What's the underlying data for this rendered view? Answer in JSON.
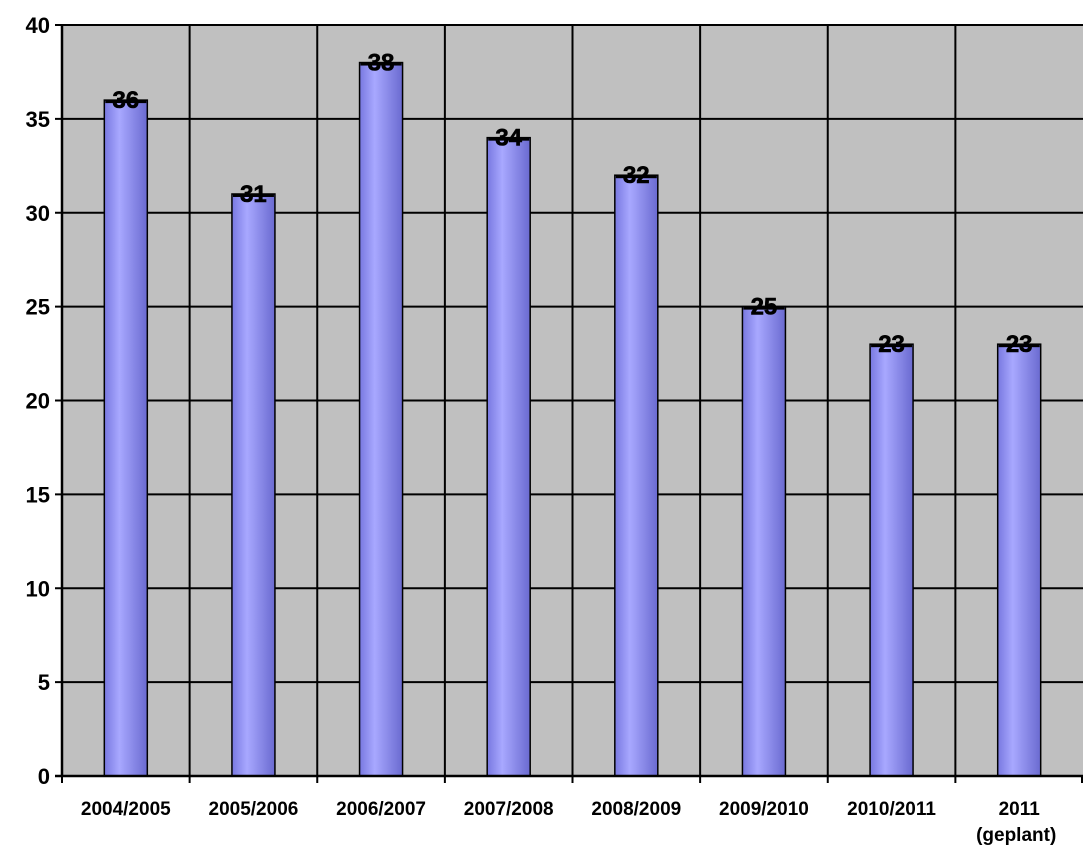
{
  "chart_data": {
    "type": "bar",
    "categories": [
      "2004/2005",
      "2005/2006",
      "2006/2007",
      "2007/2008",
      "2008/2009",
      "2009/2010",
      "2010/2011",
      "2011 (geplant)"
    ],
    "category_lines": [
      [
        "2004/2005"
      ],
      [
        "2005/2006"
      ],
      [
        "2006/2007"
      ],
      [
        "2007/2008"
      ],
      [
        "2008/2009"
      ],
      [
        "2009/2010"
      ],
      [
        "2010/2011"
      ],
      [
        "2011",
        "(geplant)"
      ]
    ],
    "values": [
      36,
      31,
      38,
      34,
      32,
      25,
      23,
      23
    ],
    "data_labels": [
      "36",
      "31",
      "38",
      "34",
      "32",
      "25",
      "23",
      "23"
    ],
    "yticks": [
      "0",
      "5",
      "10",
      "15",
      "20",
      "25",
      "30",
      "35",
      "40"
    ],
    "ylim": [
      0,
      40
    ],
    "title": "",
    "xlabel": "",
    "ylabel": "",
    "grid": true,
    "legend": "none",
    "colors": {
      "plot_background": "#c0c0c0",
      "bar_fill": "#9999ff",
      "bar_fill_dark": "#5a5ac8",
      "grid": "#000000"
    }
  }
}
